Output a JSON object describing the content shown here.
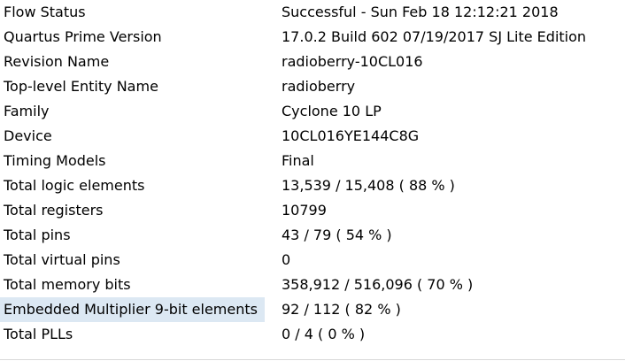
{
  "highlight_color": "#dce8f3",
  "rows": [
    {
      "label": "Flow Status",
      "value": "Successful - Sun Feb 18 12:12:21 2018"
    },
    {
      "label": "Quartus Prime Version",
      "value": "17.0.2 Build 602 07/19/2017 SJ Lite Edition"
    },
    {
      "label": "Revision Name",
      "value": "radioberry-10CL016"
    },
    {
      "label": "Top-level Entity Name",
      "value": "radioberry"
    },
    {
      "label": "Family",
      "value": "Cyclone 10 LP"
    },
    {
      "label": "Device",
      "value": "10CL016YE144C8G"
    },
    {
      "label": "Timing Models",
      "value": "Final"
    },
    {
      "label": "Total logic elements",
      "value": "13,539 / 15,408 ( 88 % )"
    },
    {
      "label": "Total registers",
      "value": "10799"
    },
    {
      "label": "Total pins",
      "value": "43 / 79 ( 54 % )"
    },
    {
      "label": "Total virtual pins",
      "value": "0"
    },
    {
      "label": "Total memory bits",
      "value": "358,912 / 516,096 ( 70 % )"
    },
    {
      "label": "Embedded Multiplier 9-bit elements",
      "value": "92 / 112 ( 82 % )",
      "selected": true
    },
    {
      "label": "Total PLLs",
      "value": "0 / 4 ( 0 % )"
    }
  ]
}
